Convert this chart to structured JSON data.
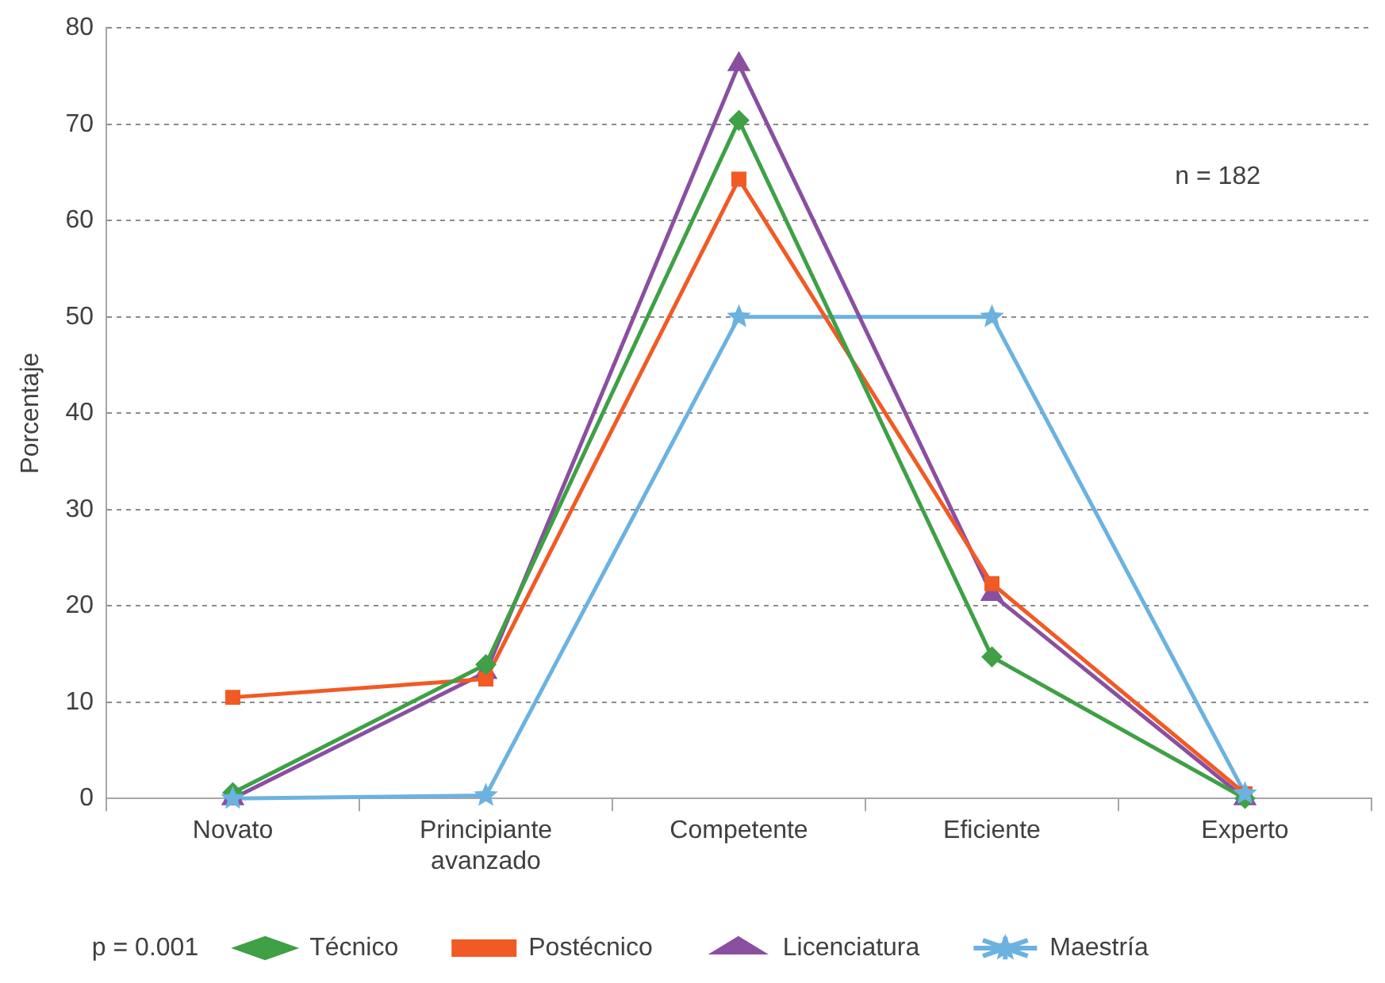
{
  "chart_data": {
    "type": "line",
    "ylabel": "Porcentaje",
    "categories": [
      "Novato",
      "Principiante avanzado",
      "Competente",
      "Eficiente",
      "Experto"
    ],
    "ylim": [
      0,
      80
    ],
    "yticks": [
      0,
      10,
      20,
      30,
      40,
      50,
      60,
      70,
      80
    ],
    "grid": "y",
    "legend": "bottom",
    "series": [
      {
        "name": "Técnico",
        "color": "#3fa045",
        "marker": "diamond",
        "values": [
          0.6,
          13.9,
          70.4,
          14.7,
          0
        ]
      },
      {
        "name": "Postécnico",
        "color": "#f15a24",
        "marker": "square",
        "values": [
          10.5,
          12.4,
          64.3,
          22.3,
          0.5
        ]
      },
      {
        "name": "Licenciatura",
        "color": "#8a4fa0",
        "marker": "triangle",
        "values": [
          0,
          13.1,
          76.2,
          21.2,
          0
        ]
      },
      {
        "name": "Maestría",
        "color": "#6cb2e0",
        "marker": "star",
        "values": [
          0,
          0.3,
          50,
          50,
          0.5
        ]
      }
    ],
    "annotations": [
      "n = 182",
      "p = 0.001"
    ]
  }
}
